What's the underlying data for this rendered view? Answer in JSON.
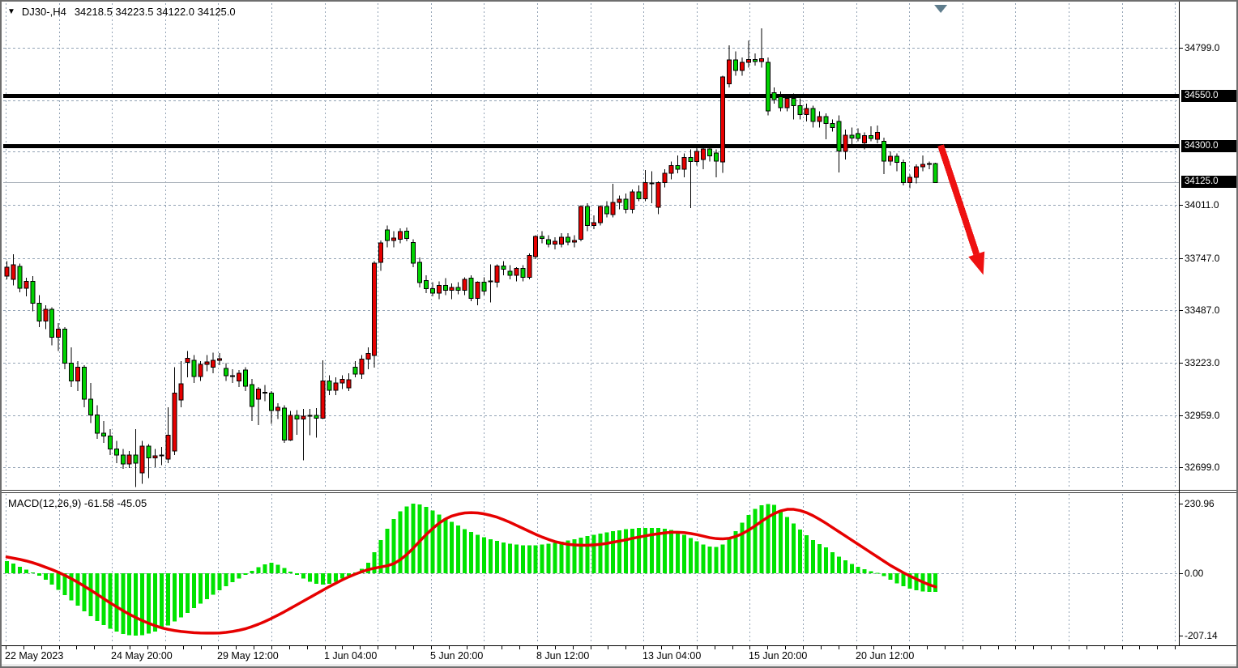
{
  "window": {
    "symbol": "DJ30-,H4",
    "quote": "34218.5 34223.5 34122.0 34125.0",
    "indicator_label": "MACD(12,26,9) -61.58 -45.05"
  },
  "colors": {
    "bull_candle": "#e60000",
    "bear_candle": "#00d200",
    "candle_outline": "#000000",
    "macd_bar": "#00e300",
    "signal_line": "#e60000",
    "grid": "#93a3b5",
    "hline": "#000000",
    "current_price_line": "#a8b0b8",
    "arrow": "#ee1111",
    "top_marker": "#5f7d8d",
    "axis_text": "#000000",
    "boxed_label_bg": "#000000",
    "boxed_label_text": "#ffffff"
  },
  "chart_data": [
    {
      "type": "candlestick",
      "title": "DJ30-,H4  34218.5 34223.5 34122.0 34125.0",
      "symbol": "DJ30-",
      "timeframe": "H4",
      "legend_position": "none",
      "grid": true,
      "ylim": [
        32590,
        34920
      ],
      "x_labels": [
        "22 May 2023",
        "24 May 20:00",
        "29 May 12:00",
        "1 Jun 04:00",
        "5 Jun 20:00",
        "8 Jun 12:00",
        "13 Jun 04:00",
        "15 Jun 20:00",
        "20 Jun 12:00"
      ],
      "y_axis": {
        "plain_labels": [
          {
            "label": "34799.0",
            "price": 34799
          },
          {
            "label": "34011.0",
            "price": 34011
          },
          {
            "label": "33747.0",
            "price": 33747
          },
          {
            "label": "33487.0",
            "price": 33487
          },
          {
            "label": "33223.0",
            "price": 33223
          },
          {
            "label": "32959.0",
            "price": 32959
          },
          {
            "label": "32699.0",
            "price": 32699
          }
        ],
        "grid_levels": [
          34799,
          34535,
          34280,
          34011,
          33747,
          33487,
          33223,
          32959,
          32699
        ]
      },
      "hlines": [
        {
          "price": 34550,
          "label": "34550.0"
        },
        {
          "price": 34300,
          "label": "34300.0"
        }
      ],
      "current_price": {
        "price": 34125,
        "label": "34125.0"
      },
      "annotations": {
        "arrow": {
          "from": {
            "index": 144.8,
            "price": 34310
          },
          "to": {
            "index": 151.4,
            "price": 33662
          }
        },
        "top_marker": {
          "index": 144.8
        }
      },
      "ohlc": [
        [
          33655,
          33730,
          33640,
          33700
        ],
        [
          33640,
          33766,
          33610,
          33712
        ],
        [
          33704,
          33718,
          33575,
          33596
        ],
        [
          33596,
          33648,
          33555,
          33630
        ],
        [
          33630,
          33655,
          33480,
          33520
        ],
        [
          33520,
          33560,
          33400,
          33430
        ],
        [
          33430,
          33510,
          33390,
          33490
        ],
        [
          33490,
          33500,
          33310,
          33350
        ],
        [
          33350,
          33420,
          33280,
          33390
        ],
        [
          33390,
          33400,
          33190,
          33220
        ],
        [
          33220,
          33300,
          33100,
          33130
        ],
        [
          33130,
          33230,
          33080,
          33200
        ],
        [
          33200,
          33210,
          33000,
          33040
        ],
        [
          33040,
          33120,
          32920,
          32960
        ],
        [
          32960,
          33010,
          32840,
          32870
        ],
        [
          32870,
          32930,
          32820,
          32855
        ],
        [
          32855,
          32890,
          32760,
          32790
        ],
        [
          32790,
          32830,
          32720,
          32760
        ],
        [
          32760,
          32790,
          32690,
          32715
        ],
        [
          32715,
          32780,
          32695,
          32760
        ],
        [
          32760,
          32890,
          32600,
          32720
        ],
        [
          32670,
          32830,
          32615,
          32805
        ],
        [
          32805,
          32815,
          32645,
          32745
        ],
        [
          32745,
          32790,
          32700,
          32755
        ],
        [
          32755,
          32800,
          32710,
          32760
        ],
        [
          32740,
          33000,
          32720,
          32860
        ],
        [
          32780,
          33200,
          32760,
          33070
        ],
        [
          33036,
          33230,
          33000,
          33117
        ],
        [
          33225,
          33280,
          33150,
          33245
        ],
        [
          33235,
          33260,
          33120,
          33154
        ],
        [
          33154,
          33230,
          33130,
          33214
        ],
        [
          33214,
          33260,
          33180,
          33227
        ],
        [
          33200,
          33272,
          33170,
          33235
        ],
        [
          33235,
          33270,
          33210,
          33243
        ],
        [
          33194,
          33220,
          33130,
          33158
        ],
        [
          33158,
          33190,
          33120,
          33154
        ],
        [
          33130,
          33185,
          33100,
          33170
        ],
        [
          33186,
          33200,
          33080,
          33105
        ],
        [
          33113,
          33140,
          32930,
          33003
        ],
        [
          33040,
          33100,
          32910,
          33090
        ],
        [
          33075,
          33110,
          33030,
          33070
        ],
        [
          33070,
          33080,
          32915,
          32983
        ],
        [
          32983,
          33020,
          32940,
          33000
        ],
        [
          32996,
          33010,
          32820,
          32834
        ],
        [
          32834,
          32980,
          32830,
          32959
        ],
        [
          32959,
          32985,
          32861,
          32940
        ],
        [
          32940,
          32990,
          32734,
          32955
        ],
        [
          32955,
          32990,
          32860,
          32959
        ],
        [
          32959,
          32995,
          32847,
          32945
        ],
        [
          32945,
          33235,
          32940,
          33130
        ],
        [
          33130,
          33160,
          33060,
          33085
        ],
        [
          33085,
          33150,
          33060,
          33120
        ],
        [
          33120,
          33160,
          33090,
          33138
        ],
        [
          33096,
          33170,
          33080,
          33136
        ],
        [
          33200,
          33230,
          33150,
          33165
        ],
        [
          33165,
          33260,
          33140,
          33240
        ],
        [
          33240,
          33300,
          33190,
          33268
        ],
        [
          33259,
          33730,
          33198,
          33720
        ],
        [
          33724,
          33835,
          33683,
          33821
        ],
        [
          33887,
          33910,
          33800,
          33834
        ],
        [
          33834,
          33880,
          33800,
          33846
        ],
        [
          33841,
          33895,
          33820,
          33879
        ],
        [
          33880,
          33900,
          33830,
          33845
        ],
        [
          33825,
          33840,
          33700,
          33720
        ],
        [
          33724,
          33750,
          33600,
          33623
        ],
        [
          33634,
          33660,
          33570,
          33593
        ],
        [
          33593,
          33625,
          33555,
          33570
        ],
        [
          33570,
          33630,
          33540,
          33610
        ],
        [
          33610,
          33645,
          33560,
          33584
        ],
        [
          33584,
          33620,
          33540,
          33600
        ],
        [
          33600,
          33625,
          33565,
          33585
        ],
        [
          33585,
          33650,
          33560,
          33640
        ],
        [
          33645,
          33660,
          33530,
          33544
        ],
        [
          33544,
          33630,
          33510,
          33625
        ],
        [
          33625,
          33650,
          33560,
          33580
        ],
        [
          33632,
          33715,
          33525,
          33630
        ],
        [
          33625,
          33715,
          33600,
          33706
        ],
        [
          33706,
          33730,
          33660,
          33690
        ],
        [
          33680,
          33710,
          33640,
          33660
        ],
        [
          33660,
          33700,
          33630,
          33694
        ],
        [
          33694,
          33710,
          33630,
          33650
        ],
        [
          33650,
          33770,
          33640,
          33760
        ],
        [
          33753,
          33860,
          33740,
          33855
        ],
        [
          33855,
          33880,
          33820,
          33845
        ],
        [
          33838,
          33860,
          33800,
          33816
        ],
        [
          33816,
          33850,
          33790,
          33830
        ],
        [
          33816,
          33870,
          33800,
          33850
        ],
        [
          33850,
          33870,
          33810,
          33826
        ],
        [
          33826,
          33860,
          33800,
          33834
        ],
        [
          33841,
          34010,
          33830,
          34004
        ],
        [
          34004,
          34020,
          33880,
          33910
        ],
        [
          33910,
          33960,
          33890,
          33923
        ],
        [
          33923,
          34010,
          33910,
          34004
        ],
        [
          34004,
          34030,
          33950,
          33967
        ],
        [
          33963,
          34118,
          33950,
          34024
        ],
        [
          34024,
          34060,
          33990,
          34040
        ],
        [
          34040,
          34070,
          33970,
          33990
        ],
        [
          33990,
          34090,
          33970,
          34078
        ],
        [
          34078,
          34110,
          34030,
          34043
        ],
        [
          34043,
          34186,
          34030,
          34125
        ],
        [
          34122,
          34180,
          34020,
          34120
        ],
        [
          34000,
          34130,
          33965,
          34125
        ],
        [
          34125,
          34190,
          34100,
          34170
        ],
        [
          34170,
          34230,
          34140,
          34210
        ],
        [
          34210,
          34260,
          34170,
          34190
        ],
        [
          34190,
          34270,
          34150,
          34250
        ],
        [
          34250,
          34290,
          33996,
          34230
        ],
        [
          34230,
          34300,
          34210,
          34280
        ],
        [
          34240,
          34300,
          34190,
          34292
        ],
        [
          34292,
          34310,
          34230,
          34258
        ],
        [
          34272,
          34290,
          34150,
          34232
        ],
        [
          34227,
          34660,
          34172,
          34653
        ],
        [
          34618,
          34811,
          34600,
          34739
        ],
        [
          34739,
          34780,
          34660,
          34685
        ],
        [
          34685,
          34750,
          34660,
          34726
        ],
        [
          34726,
          34835,
          34700,
          34740
        ],
        [
          34740,
          34770,
          34710,
          34730
        ],
        [
          34730,
          34896,
          34700,
          34745
        ],
        [
          34726,
          34750,
          34460,
          34483
        ],
        [
          34574,
          34600,
          34520,
          34540
        ],
        [
          34553,
          34580,
          34480,
          34500
        ],
        [
          34500,
          34560,
          34480,
          34545
        ],
        [
          34545,
          34570,
          34440,
          34510
        ],
        [
          34510,
          34545,
          34440,
          34465
        ],
        [
          34465,
          34520,
          34430,
          34495
        ],
        [
          34495,
          34510,
          34400,
          34430
        ],
        [
          34430,
          34480,
          34400,
          34455
        ],
        [
          34455,
          34470,
          34340,
          34420
        ],
        [
          34420,
          34440,
          34380,
          34400
        ],
        [
          34430,
          34460,
          34175,
          34282
        ],
        [
          34280,
          34390,
          34240,
          34362
        ],
        [
          34362,
          34400,
          34300,
          34348
        ],
        [
          34370,
          34395,
          34330,
          34345
        ],
        [
          34322,
          34375,
          34290,
          34360
        ],
        [
          34360,
          34405,
          34330,
          34345
        ],
        [
          34340,
          34410,
          34320,
          34376
        ],
        [
          34330,
          34350,
          34166,
          34232
        ],
        [
          34232,
          34280,
          34210,
          34256
        ],
        [
          34256,
          34270,
          34180,
          34226
        ],
        [
          34226,
          34240,
          34110,
          34124
        ],
        [
          34124,
          34165,
          34095,
          34150
        ],
        [
          34150,
          34215,
          34120,
          34203
        ],
        [
          34203,
          34260,
          34180,
          34215
        ],
        [
          34215,
          34230,
          34190,
          34219
        ],
        [
          34218.5,
          34223.5,
          34122.0,
          34125.0
        ]
      ]
    },
    {
      "type": "bar",
      "subtype": "macd",
      "title": "MACD(12,26,9)",
      "params": "(12,26,9)",
      "last_values": {
        "macd": -61.58,
        "signal": -45.05
      },
      "ylim": [
        -207.14,
        230.96
      ],
      "y_labels": [
        {
          "label": "230.96",
          "value": 230.96
        },
        {
          "label": "0.00",
          "value": 0
        },
        {
          "label": "-207.14",
          "value": -207.14
        }
      ],
      "histogram": [
        40,
        32,
        22,
        12,
        3,
        -8,
        -22,
        -38,
        -55,
        -72,
        -90,
        -108,
        -126,
        -143,
        -158,
        -172,
        -184,
        -194,
        -201,
        -206,
        -207.14,
        -205,
        -200,
        -193,
        -184,
        -173,
        -160,
        -146,
        -131,
        -116,
        -101,
        -86,
        -71,
        -57,
        -43,
        -30,
        -17,
        -5,
        8,
        20,
        30,
        35,
        28,
        18,
        6,
        -6,
        -18,
        -28,
        -35,
        -38,
        -35,
        -28,
        -18,
        -8,
        3,
        15,
        35,
        70,
        110,
        148,
        180,
        205,
        222,
        230.96,
        228,
        220,
        208,
        195,
        182,
        170,
        158,
        147,
        137,
        128,
        120,
        113,
        107,
        102,
        98,
        95,
        93,
        92,
        93,
        95,
        98,
        101,
        105,
        109,
        113,
        118,
        123,
        128,
        132,
        136,
        140,
        143,
        146,
        148,
        150,
        151,
        151,
        150,
        148,
        144,
        137,
        128,
        117,
        106,
        96,
        89,
        87,
        95,
        115,
        140,
        168,
        193,
        213,
        226,
        230,
        227,
        207,
        186,
        165,
        145,
        126,
        110,
        97,
        86,
        70,
        55,
        43,
        31,
        22,
        14,
        7,
        2,
        -10,
        -22,
        -33,
        -43,
        -51,
        -57,
        -60,
        -62,
        -61.58
      ],
      "signal_line": [
        54,
        50,
        46,
        41,
        35,
        28,
        20,
        12,
        3,
        -7,
        -18,
        -30,
        -43,
        -56,
        -70,
        -84,
        -98,
        -111,
        -124,
        -136,
        -147,
        -157,
        -166,
        -174,
        -181,
        -186,
        -190,
        -193,
        -195,
        -197,
        -198,
        -198.5,
        -198.5,
        -198,
        -196,
        -193,
        -189,
        -184,
        -177,
        -169,
        -160,
        -150,
        -139,
        -128,
        -116,
        -104,
        -92,
        -80,
        -68,
        -56,
        -44,
        -33,
        -22,
        -12,
        -3,
        5,
        12,
        17,
        21,
        25,
        32,
        45,
        62,
        83,
        106,
        128,
        148,
        166,
        180,
        190,
        196,
        200,
        201,
        200,
        197,
        192,
        186,
        178,
        169,
        159,
        149,
        139,
        129,
        120,
        112,
        105,
        100,
        96,
        94,
        93,
        93,
        94,
        96,
        99,
        103,
        107,
        111,
        116,
        120,
        124,
        128,
        131,
        134,
        136,
        136,
        135,
        132,
        128,
        123,
        118,
        115,
        114,
        116,
        122,
        131,
        143,
        157,
        172,
        186,
        198,
        207,
        212,
        212,
        208,
        201,
        191,
        179,
        166,
        152,
        138,
        124,
        110,
        96,
        82,
        68,
        54,
        40,
        26,
        14,
        2,
        -9,
        -19,
        -29,
        -38,
        -45.05
      ]
    }
  ]
}
